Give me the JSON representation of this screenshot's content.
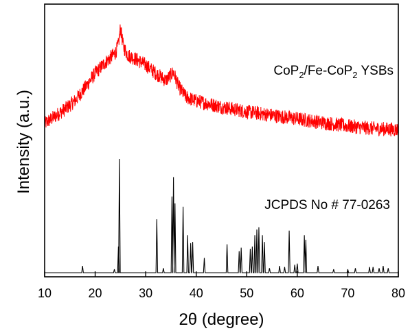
{
  "chart_data": {
    "type": "line",
    "xlabel": "2θ (degree)",
    "ylabel": "Intensity (a.u.)",
    "xlim": [
      10,
      80
    ],
    "xticks": [
      10,
      20,
      30,
      40,
      50,
      60,
      70,
      80
    ],
    "grid": false,
    "legend": "none",
    "annotations": {
      "sample_main": "CoP",
      "sample_sub1": "2",
      "sample_mid": "/Fe-CoP",
      "sample_sub2": "2",
      "sample_tail": " YSBs",
      "reference": "JCPDS No # 77-0263"
    },
    "series": [
      {
        "kind": "noisy-profile",
        "color": "#ff0000",
        "envelope_x": [
          10,
          12,
          14,
          16,
          18,
          20,
          22,
          24,
          24.6,
          25,
          25.6,
          26.5,
          28,
          30,
          32,
          34,
          35.5,
          36.5,
          38,
          40,
          45,
          50,
          55,
          60,
          65,
          70,
          75,
          80
        ],
        "envelope_y": [
          14,
          20,
          26,
          33,
          44,
          56,
          65,
          73,
          80,
          94,
          78,
          71,
          68,
          63,
          56,
          50,
          57,
          45,
          36,
          33,
          28,
          24,
          21,
          18,
          15,
          12,
          10,
          9
        ],
        "noise": 6
      },
      {
        "kind": "stick-pattern",
        "color": "#000000",
        "peaks_x": [
          17.5,
          23.8,
          24.6,
          24.8,
          32.2,
          33.5,
          35.2,
          35.5,
          35.8,
          37.4,
          38.3,
          38.9,
          39.3,
          41.6,
          46.1,
          48.5,
          48.9,
          50.7,
          51.1,
          51.6,
          52.0,
          52.4,
          53.1,
          53.5,
          54.5,
          56.5,
          57.5,
          58.4,
          59.5,
          60.0,
          61.4,
          61.7,
          64.1,
          67.2,
          70.0,
          71.5,
          74.3,
          75.0,
          76.2,
          77.0,
          78.0
        ],
        "peaks_y": [
          6,
          3,
          23,
          100,
          47,
          4,
          67,
          84,
          61,
          58,
          33,
          26,
          27,
          13,
          25,
          19,
          22,
          21,
          23,
          33,
          38,
          40,
          33,
          27,
          4,
          6,
          5,
          37,
          7,
          8,
          33,
          29,
          6,
          3,
          3,
          4,
          5,
          5,
          4,
          6,
          4
        ]
      }
    ]
  }
}
